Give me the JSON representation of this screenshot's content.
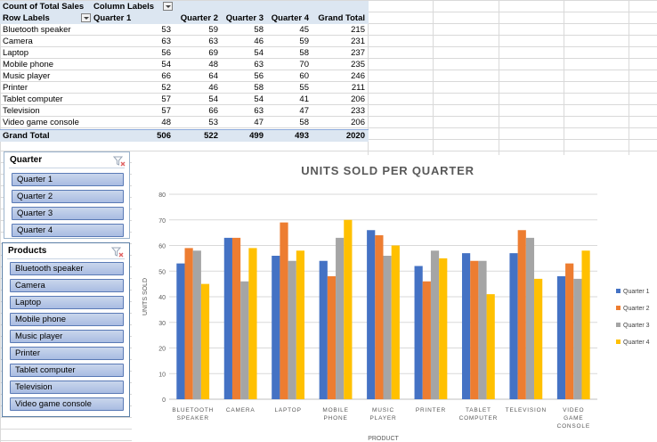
{
  "pivot": {
    "title": "Count of Total Sales",
    "column_labels": "Column Labels",
    "row_labels": "Row Labels",
    "columns": [
      "Quarter 1",
      "Quarter 2",
      "Quarter 3",
      "Quarter 4",
      "Grand Total"
    ],
    "rows": [
      {
        "label": "Bluetooth speaker",
        "values": [
          "53",
          "59",
          "58",
          "45",
          "215"
        ]
      },
      {
        "label": "Camera",
        "values": [
          "63",
          "63",
          "46",
          "59",
          "231"
        ]
      },
      {
        "label": "Laptop",
        "values": [
          "56",
          "69",
          "54",
          "58",
          "237"
        ]
      },
      {
        "label": "Mobile phone",
        "values": [
          "54",
          "48",
          "63",
          "70",
          "235"
        ]
      },
      {
        "label": "Music player",
        "values": [
          "66",
          "64",
          "56",
          "60",
          "246"
        ]
      },
      {
        "label": "Printer",
        "values": [
          "52",
          "46",
          "58",
          "55",
          "211"
        ]
      },
      {
        "label": "Tablet computer",
        "values": [
          "57",
          "54",
          "54",
          "41",
          "206"
        ]
      },
      {
        "label": "Television",
        "values": [
          "57",
          "66",
          "63",
          "47",
          "233"
        ]
      },
      {
        "label": "Video game console",
        "values": [
          "48",
          "53",
          "47",
          "58",
          "206"
        ]
      }
    ],
    "grand_total": {
      "label": "Grand Total",
      "values": [
        "506",
        "522",
        "499",
        "493",
        "2020"
      ]
    }
  },
  "slicers": {
    "quarter": {
      "title": "Quarter",
      "items": [
        "Quarter 1",
        "Quarter 2",
        "Quarter 3",
        "Quarter 4"
      ]
    },
    "products": {
      "title": "Products",
      "items": [
        "Bluetooth speaker",
        "Camera",
        "Laptop",
        "Mobile phone",
        "Music player",
        "Printer",
        "Tablet computer",
        "Television",
        "Video game console"
      ]
    }
  },
  "chart_data": {
    "type": "bar",
    "title": "UNITS SOLD PER QUARTER",
    "xlabel": "PRODUCT",
    "ylabel": "UNITS SOLD",
    "ylim": [
      0,
      80
    ],
    "yticks": [
      0,
      10,
      20,
      30,
      40,
      50,
      60,
      70,
      80
    ],
    "grid": true,
    "legend_position": "right",
    "categories": [
      [
        "BLUETOOTH",
        "SPEAKER"
      ],
      [
        "CAMERA"
      ],
      [
        "LAPTOP"
      ],
      [
        "MOBILE",
        "PHONE"
      ],
      [
        "MUSIC",
        "PLAYER"
      ],
      [
        "PRINTER"
      ],
      [
        "TABLET",
        "COMPUTER"
      ],
      [
        "TELEVISION"
      ],
      [
        "VIDEO",
        "GAME",
        "CONSOLE"
      ]
    ],
    "series": [
      {
        "name": "Quarter 1",
        "color": "#4472c4",
        "values": [
          53,
          63,
          56,
          54,
          66,
          52,
          57,
          57,
          48
        ]
      },
      {
        "name": "Quarter 2",
        "color": "#ed7d31",
        "values": [
          59,
          63,
          69,
          48,
          64,
          46,
          54,
          66,
          53
        ]
      },
      {
        "name": "Quarter 3",
        "color": "#a5a5a5",
        "values": [
          58,
          46,
          54,
          63,
          56,
          58,
          54,
          63,
          47
        ]
      },
      {
        "name": "Quarter 4",
        "color": "#ffc000",
        "values": [
          45,
          59,
          58,
          70,
          60,
          55,
          41,
          47,
          58
        ]
      }
    ]
  }
}
